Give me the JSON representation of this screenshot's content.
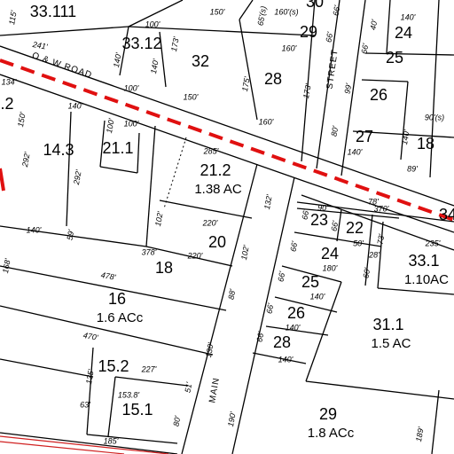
{
  "parcels": [
    {
      "label": "33.111"
    },
    {
      "label": "30"
    },
    {
      "label": "29"
    },
    {
      "label": "24"
    },
    {
      "label": "33.12"
    },
    {
      "label": "32"
    },
    {
      "label": "28"
    },
    {
      "label": "25"
    },
    {
      "label": "26"
    },
    {
      "label": "27"
    },
    {
      "label": "18"
    },
    {
      "label": ".2"
    },
    {
      "label": "14.3"
    },
    {
      "label": "21.1"
    },
    {
      "label": "21.2",
      "area": "1.38 AC"
    },
    {
      "label": "23"
    },
    {
      "label": "22"
    },
    {
      "label": "34"
    },
    {
      "label": "20"
    },
    {
      "label": "18"
    },
    {
      "label": "24"
    },
    {
      "label": "33.1",
      "area": "1.10AC"
    },
    {
      "label": "25"
    },
    {
      "label": "16",
      "area": "1.6 ACc"
    },
    {
      "label": "26"
    },
    {
      "label": "31.1",
      "area": "1.5 AC"
    },
    {
      "label": "28"
    },
    {
      "label": "15.2"
    },
    {
      "label": "15.1"
    },
    {
      "label": "29",
      "area": "1.8 ACc"
    }
  ],
  "dimensions": [
    "241'",
    "134'",
    "150'",
    "140'",
    "100'",
    "140'",
    "140'",
    "100'",
    "173'",
    "150'",
    "65'(s)",
    "160'(s)",
    "66'",
    "160'",
    "66'",
    "175'",
    "150'",
    "173'",
    "160'",
    "140'",
    "40'",
    "66'",
    "99'",
    "80'",
    "140'",
    "140'",
    "90'(s)",
    "89'",
    "292'",
    "292'",
    "100'",
    "100'",
    "285'",
    "132'",
    "102'",
    "220'",
    "220'",
    "378'",
    "102'",
    "59'",
    "140'",
    "168'",
    "478'",
    "88'",
    "470'",
    "130'",
    "227'",
    "135'",
    "153.8'",
    "51'",
    "63'",
    "80'",
    "185'",
    "190'",
    "370'",
    "235'",
    "90'",
    "66'",
    "66'",
    "78'",
    "73'",
    "50'",
    "28'",
    "66'",
    "180'",
    "60'",
    "66'",
    "140'",
    "66'",
    "140'",
    "66'",
    "140'",
    "189'",
    "115'"
  ],
  "streets": [
    "O & W ROAD",
    "STREET",
    "MAIN"
  ]
}
